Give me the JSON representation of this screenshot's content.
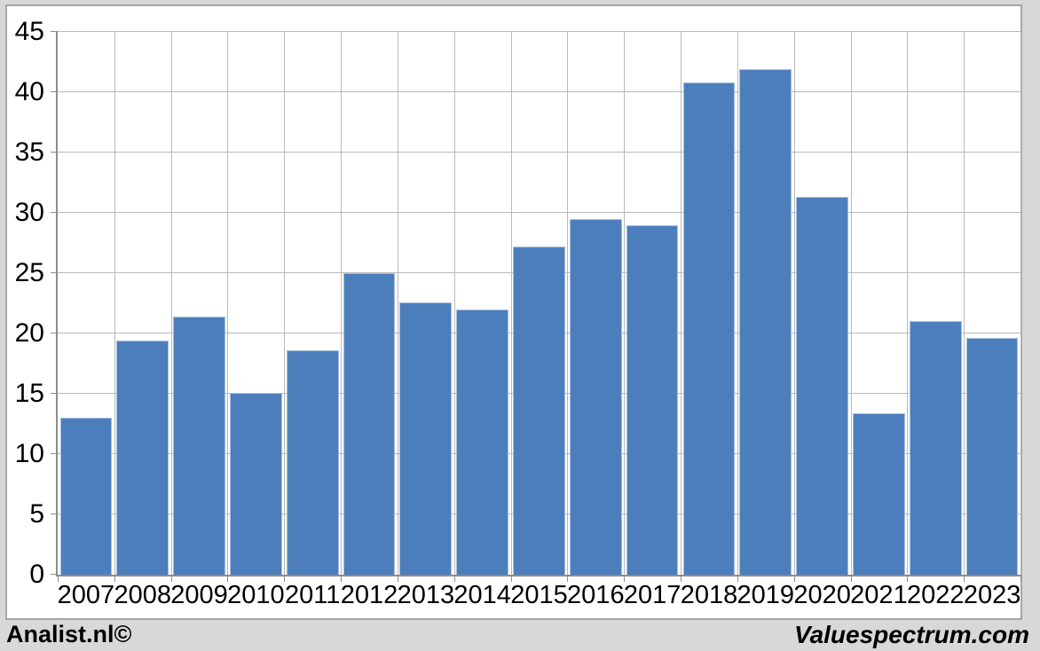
{
  "footer": {
    "left_text": "Analist.nl©",
    "right_text": "Valuespectrum.com"
  },
  "colors": {
    "bar": "#4d7ebc",
    "bar_edge": "#a4bfe0",
    "gridline": "#b9b9b9",
    "axis": "#8c8c8c",
    "page_background": "#d8d8d8",
    "panel_background": "#ffffff",
    "panel_border": "#a6a6a6",
    "text": "#000000"
  },
  "chart_data": {
    "type": "bar",
    "title": "",
    "xlabel": "",
    "ylabel": "",
    "categories": [
      "2007",
      "2008",
      "2009",
      "2010",
      "2011",
      "2012",
      "2013",
      "2014",
      "2015",
      "2016",
      "2017",
      "2018",
      "2019",
      "2020",
      "2021",
      "2022",
      "2023"
    ],
    "values": [
      13.0,
      19.4,
      21.4,
      15.1,
      18.6,
      25.0,
      22.6,
      22.0,
      27.2,
      29.5,
      29.0,
      40.8,
      41.9,
      31.3,
      13.4,
      21.0,
      19.6
    ],
    "ylim": [
      0,
      45
    ],
    "ytick_step": 5,
    "grid": true,
    "legend": false,
    "bar_gap_fraction": 0.08
  }
}
